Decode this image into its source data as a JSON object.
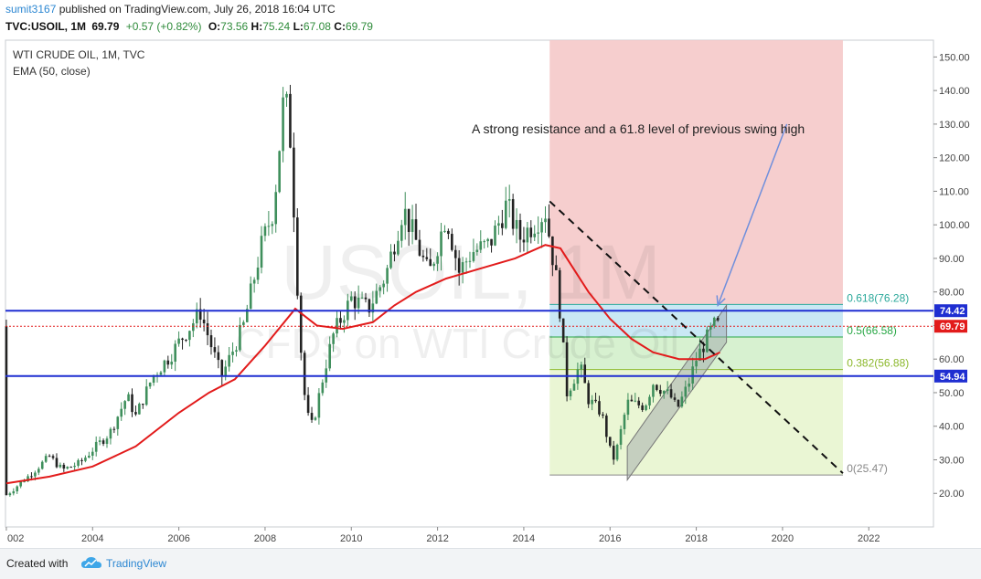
{
  "header": {
    "user": "sumit3167",
    "published": "published on TradingView.com, July 26, 2018 16:04 UTC",
    "symbol": "TVC:USOIL, 1M",
    "last": "69.79",
    "change": "+0.57 (+0.82%)",
    "o_label": "O:",
    "o_value": "73.56",
    "h_label": "H:",
    "h_value": "75.24",
    "l_label": "L:",
    "l_value": "67.08",
    "c_label": "C:",
    "c_value": "69.79"
  },
  "legend": {
    "title": "WTI CRUDE OIL, 1M, TVC",
    "indicator": "EMA (50, close)"
  },
  "watermark": {
    "symbol": "USOIL, 1M",
    "description": "CFDs on WTI Crude Oil"
  },
  "annotation": "A strong resistance and a 61.8 level of previous swing high",
  "footer": {
    "created_with": "Created with",
    "brand": "TradingView"
  },
  "colors": {
    "up": "#3f8f5c",
    "down": "#222222",
    "ema": "#e21b1b",
    "hline": "#1f2ed1",
    "fib_red": "#f4c6c6",
    "fib_blue": "#bfe4f2",
    "fib_green": "#d0efc8",
    "fib_lime": "#e6f4cc",
    "last_price": "#e21b1b",
    "arrow": "#6f8fdc"
  },
  "chart_data": {
    "type": "candlestick",
    "x_ticks": [
      "002",
      "2004",
      "2006",
      "2008",
      "2010",
      "2012",
      "2014",
      "2016",
      "2018",
      "2020",
      "2022"
    ],
    "y_ticks": [
      20,
      30,
      40,
      50,
      60,
      70,
      80,
      90,
      100,
      110,
      120,
      130,
      140,
      150
    ],
    "y_range": [
      10,
      155
    ],
    "x_range": [
      2001.98,
      2023.5
    ],
    "price_series": [
      [
        2002.0,
        19.5
      ],
      [
        2002.5,
        25
      ],
      [
        2003.0,
        31
      ],
      [
        2003.3,
        27
      ],
      [
        2003.7,
        29
      ],
      [
        2004.0,
        33
      ],
      [
        2004.4,
        38
      ],
      [
        2004.8,
        49
      ],
      [
        2005.0,
        43
      ],
      [
        2005.4,
        55
      ],
      [
        2005.8,
        61
      ],
      [
        2006.0,
        65
      ],
      [
        2006.5,
        74
      ],
      [
        2006.9,
        58
      ],
      [
        2007.0,
        55
      ],
      [
        2007.5,
        70
      ],
      [
        2007.9,
        93
      ],
      [
        2008.2,
        105
      ],
      [
        2008.45,
        140
      ],
      [
        2008.6,
        124
      ],
      [
        2008.8,
        68
      ],
      [
        2008.95,
        44
      ],
      [
        2009.1,
        40
      ],
      [
        2009.4,
        58
      ],
      [
        2009.6,
        68
      ],
      [
        2010.0,
        78
      ],
      [
        2010.4,
        75
      ],
      [
        2010.8,
        85
      ],
      [
        2011.2,
        105
      ],
      [
        2011.5,
        95
      ],
      [
        2011.8,
        85
      ],
      [
        2012.2,
        103
      ],
      [
        2012.5,
        86
      ],
      [
        2012.8,
        92
      ],
      [
        2013.2,
        94
      ],
      [
        2013.6,
        106
      ],
      [
        2013.9,
        96
      ],
      [
        2014.2,
        100
      ],
      [
        2014.5,
        104
      ],
      [
        2014.8,
        80
      ],
      [
        2015.0,
        50
      ],
      [
        2015.3,
        58
      ],
      [
        2015.5,
        48
      ],
      [
        2015.8,
        44
      ],
      [
        2016.0,
        33
      ],
      [
        2016.1,
        30
      ],
      [
        2016.4,
        47
      ],
      [
        2016.8,
        46
      ],
      [
        2017.0,
        53
      ],
      [
        2017.4,
        49
      ],
      [
        2017.55,
        45
      ],
      [
        2017.8,
        52
      ],
      [
        2018.0,
        60
      ],
      [
        2018.2,
        65
      ],
      [
        2018.4,
        70
      ],
      [
        2018.55,
        69.79
      ]
    ],
    "ema_series": [
      [
        2002.0,
        23
      ],
      [
        2003.0,
        25
      ],
      [
        2004.0,
        28
      ],
      [
        2005.0,
        34
      ],
      [
        2006.0,
        44
      ],
      [
        2006.7,
        50
      ],
      [
        2007.3,
        54
      ],
      [
        2008.0,
        64
      ],
      [
        2008.7,
        75
      ],
      [
        2009.2,
        70
      ],
      [
        2009.8,
        69
      ],
      [
        2010.5,
        71
      ],
      [
        2011.0,
        76
      ],
      [
        2011.5,
        80
      ],
      [
        2012.2,
        84
      ],
      [
        2013.0,
        87
      ],
      [
        2013.8,
        90
      ],
      [
        2014.5,
        94
      ],
      [
        2014.85,
        93
      ],
      [
        2015.5,
        80
      ],
      [
        2016.0,
        72
      ],
      [
        2016.5,
        66
      ],
      [
        2017.0,
        62
      ],
      [
        2017.6,
        60
      ],
      [
        2018.2,
        60
      ],
      [
        2018.55,
        62
      ]
    ],
    "horizontal_lines": [
      {
        "label": "74.42",
        "value": 74.42
      },
      {
        "label": "54.94",
        "value": 54.94
      }
    ],
    "last_price": {
      "label": "69.79",
      "value": 69.79
    },
    "fib_levels": [
      {
        "label": "0.618(76.28)",
        "value": 76.28
      },
      {
        "label": "0.5(66.58)",
        "value": 66.58
      },
      {
        "label": "0.382(56.88)",
        "value": 56.88
      },
      {
        "label": "0(25.47)",
        "value": 25.47
      }
    ],
    "fib_top": 155,
    "fib_x_range": [
      2014.6,
      2021.4
    ],
    "dashed_trend": [
      [
        2014.6,
        107
      ],
      [
        2021.4,
        26
      ]
    ],
    "channel": {
      "upper": [
        [
          2016.4,
          34
        ],
        [
          2018.7,
          76
        ]
      ],
      "lower": [
        [
          2016.4,
          24
        ],
        [
          2018.7,
          65
        ]
      ]
    },
    "arrow": {
      "from": [
        2020.1,
        130
      ],
      "to": [
        2018.5,
        76
      ]
    }
  }
}
